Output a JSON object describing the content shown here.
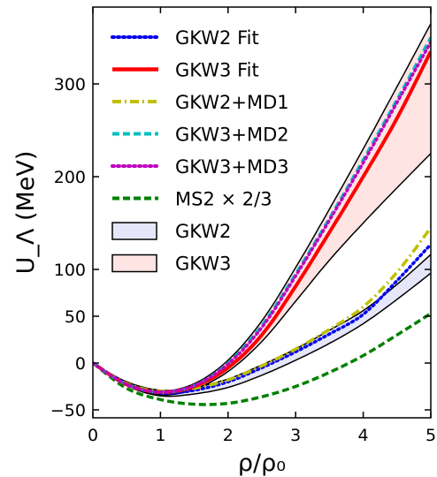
{
  "chart_data": {
    "type": "line",
    "xlabel": "ρ/ρ₀",
    "ylabel": "U_Λ (MeV)",
    "xlim": [
      0,
      5
    ],
    "ylim": [
      -60,
      380
    ],
    "y_scale": "piecewise: linear 0–100 expanded, compressed above 100",
    "xticks": [
      0,
      1,
      2,
      3,
      4,
      5
    ],
    "yticks": [
      -50,
      0,
      50,
      100,
      200,
      300
    ],
    "grid": false,
    "legend_position": "top-left",
    "series": [
      {
        "name": "GKW2 Fit",
        "style": "dotted",
        "color": "#0000ee",
        "x": [
          0,
          0.5,
          1,
          1.5,
          2,
          2.5,
          3,
          3.5,
          4,
          4.5,
          5
        ],
        "y": [
          0,
          -22,
          -32,
          -29,
          -20,
          -5,
          12,
          31,
          52,
          88,
          127
        ]
      },
      {
        "name": "GKW3 Fit",
        "style": "solid",
        "color": "#ff0000",
        "x": [
          0,
          0.5,
          1,
          1.5,
          2,
          2.5,
          3,
          3.5,
          4,
          4.5,
          5
        ],
        "y": [
          0,
          -23,
          -31,
          -25,
          -5,
          30,
          82,
          140,
          200,
          263,
          335
        ]
      },
      {
        "name": "GKW2+MD1",
        "style": "dashdot",
        "color": "#bfbf00",
        "x": [
          0,
          0.5,
          1,
          1.5,
          2,
          2.5,
          3,
          3.5,
          4,
          4.5,
          5
        ],
        "y": [
          0,
          -22,
          -30,
          -27,
          -18,
          -3,
          15,
          36,
          60,
          97,
          145
        ]
      },
      {
        "name": "GKW3+MD2",
        "style": "dashed",
        "color": "#00bfbf",
        "x": [
          0,
          0.5,
          1,
          1.5,
          2,
          2.5,
          3,
          3.5,
          4,
          4.5,
          5
        ],
        "y": [
          0,
          -23,
          -31,
          -24,
          0,
          40,
          95,
          155,
          218,
          283,
          350
        ]
      },
      {
        "name": "GKW3+MD3",
        "style": "dotted",
        "color": "#bf00bf",
        "x": [
          0,
          0.5,
          1,
          1.5,
          2,
          2.5,
          3,
          3.5,
          4,
          4.5,
          5
        ],
        "y": [
          0,
          -23,
          -31,
          -24,
          -1,
          38,
          93,
          153,
          215,
          280,
          345
        ]
      },
      {
        "name": "MS2 × 2/3",
        "style": "dashed",
        "color": "#008000",
        "x": [
          0,
          0.5,
          1,
          1.5,
          2,
          2.5,
          3,
          3.5,
          4,
          4.5,
          5
        ],
        "y": [
          0,
          -27,
          -39,
          -44,
          -43,
          -36,
          -25,
          -10,
          8,
          30,
          53
        ]
      }
    ],
    "bands": [
      {
        "name": "GKW2",
        "fill": "#e6e6fa",
        "x": [
          0,
          0.5,
          1,
          1.5,
          2,
          2.5,
          3,
          3.5,
          4,
          4.5,
          5
        ],
        "lower": [
          0,
          -24,
          -35,
          -33,
          -26,
          -13,
          3,
          21,
          42,
          68,
          96
        ],
        "upper": [
          0,
          -20,
          -29,
          -26,
          -17,
          -2,
          15,
          35,
          56,
          84,
          116
        ]
      },
      {
        "name": "GKW3",
        "fill": "#ffe4e4",
        "x": [
          0,
          0.5,
          1,
          1.5,
          2,
          2.5,
          3,
          3.5,
          4,
          4.5,
          5
        ],
        "lower": [
          0,
          -24,
          -34,
          -28,
          -9,
          23,
          66,
          110,
          150,
          188,
          225
        ],
        "upper": [
          0,
          -22,
          -30,
          -22,
          3,
          45,
          102,
          165,
          230,
          297,
          365
        ]
      }
    ]
  }
}
